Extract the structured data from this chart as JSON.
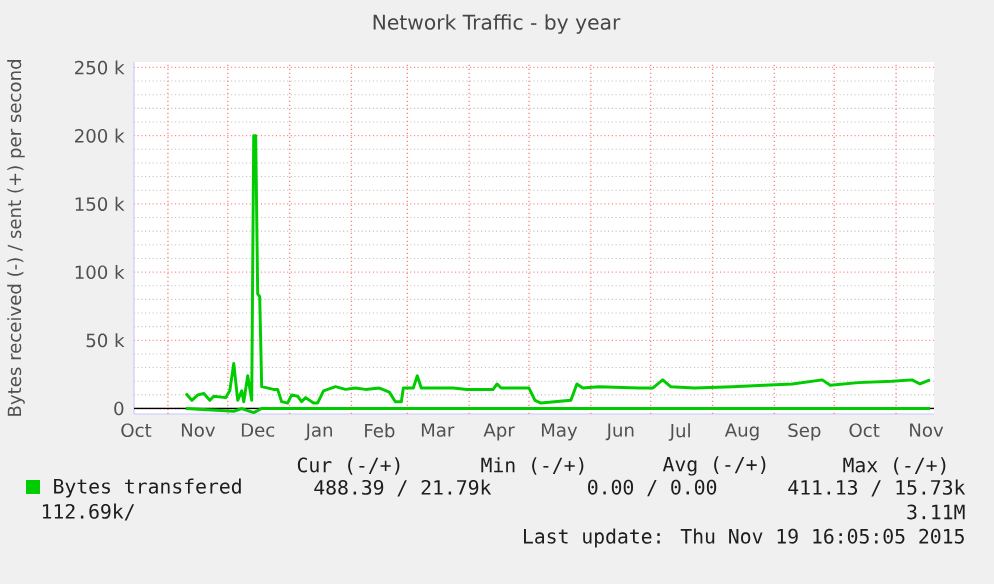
{
  "chart_data": {
    "type": "line",
    "title": "Network Traffic - by year",
    "ylabel": "Bytes received (-) / sent (+) per second",
    "xlim": [
      "2014-10-15",
      "2015-11-20"
    ],
    "xticks": [
      {
        "value": "2014-10-16",
        "label": "Oct"
      },
      {
        "value": "2014-11-01",
        "label": null
      },
      {
        "value": "2014-11-16",
        "label": "Nov"
      },
      {
        "value": "2014-12-01",
        "label": null
      },
      {
        "value": "2014-12-16",
        "label": "Dec"
      },
      {
        "value": "2015-01-01",
        "label": null
      },
      {
        "value": "2015-01-16",
        "label": "Jan"
      },
      {
        "value": "2015-02-01",
        "label": null
      },
      {
        "value": "2015-02-15",
        "label": "Feb"
      },
      {
        "value": "2015-03-01",
        "label": null
      },
      {
        "value": "2015-03-16",
        "label": "Mar"
      },
      {
        "value": "2015-04-01",
        "label": null
      },
      {
        "value": "2015-04-16",
        "label": "Apr"
      },
      {
        "value": "2015-05-01",
        "label": null
      },
      {
        "value": "2015-05-16",
        "label": "May"
      },
      {
        "value": "2015-06-01",
        "label": null
      },
      {
        "value": "2015-06-16",
        "label": "Jun"
      },
      {
        "value": "2015-07-01",
        "label": null
      },
      {
        "value": "2015-07-16",
        "label": "Jul"
      },
      {
        "value": "2015-08-01",
        "label": null
      },
      {
        "value": "2015-08-16",
        "label": "Aug"
      },
      {
        "value": "2015-09-01",
        "label": null
      },
      {
        "value": "2015-09-16",
        "label": "Sep"
      },
      {
        "value": "2015-10-01",
        "label": null
      },
      {
        "value": "2015-10-16",
        "label": "Oct"
      },
      {
        "value": "2015-11-01",
        "label": null
      },
      {
        "value": "2015-11-16",
        "label": "Nov"
      }
    ],
    "ylim": [
      -4000,
      254000
    ],
    "yticks": [
      {
        "value": 0,
        "label": "0"
      },
      {
        "value": 50000,
        "label": "50 k"
      },
      {
        "value": 100000,
        "label": "100 k"
      },
      {
        "value": 150000,
        "label": "150 k"
      },
      {
        "value": 200000,
        "label": "200 k"
      },
      {
        "value": 250000,
        "label": "250 k"
      }
    ],
    "grid": true,
    "legend": "bottom",
    "ref_lines": [
      {
        "axis": "y",
        "value": 0,
        "color": "#000000"
      }
    ],
    "series": [
      {
        "name": "Bytes transfered",
        "color": "#00cc00",
        "x": [
          "2014-11-10",
          "2014-11-13",
          "2014-11-16",
          "2014-11-19",
          "2014-11-22",
          "2014-11-24",
          "2014-11-30",
          "2014-12-02",
          "2014-12-04",
          "2014-12-06",
          "2014-12-08",
          "2014-12-09",
          "2014-12-11",
          "2014-12-13",
          "2014-12-14",
          "2014-12-15",
          "2014-12-16",
          "2014-12-17",
          "2014-12-18",
          "2014-12-24",
          "2014-12-26",
          "2014-12-28",
          "2014-12-31",
          "2015-01-02",
          "2015-01-05",
          "2015-01-07",
          "2015-01-09",
          "2015-01-13",
          "2015-01-15",
          "2015-01-18",
          "2015-01-24",
          "2015-01-29",
          "2015-02-03",
          "2015-02-08",
          "2015-02-15",
          "2015-02-20",
          "2015-02-23",
          "2015-02-26",
          "2015-02-27",
          "2015-03-04",
          "2015-03-06",
          "2015-03-08",
          "2015-03-24",
          "2015-03-31",
          "2015-04-13",
          "2015-04-15",
          "2015-04-17",
          "2015-05-01",
          "2015-05-04",
          "2015-05-07",
          "2015-05-22",
          "2015-05-25",
          "2015-05-28",
          "2015-06-05",
          "2015-06-25",
          "2015-07-02",
          "2015-07-07",
          "2015-07-11",
          "2015-07-23",
          "2015-08-11",
          "2015-08-27",
          "2015-09-10",
          "2015-09-25",
          "2015-09-29",
          "2015-10-13",
          "2015-10-30",
          "2015-11-09",
          "2015-11-13",
          "2015-11-18"
        ],
        "values": [
          11000,
          6000,
          10000,
          11000,
          6000,
          9000,
          8000,
          13000,
          33000,
          6000,
          13000,
          5000,
          24000,
          6000,
          200000,
          200000,
          84000,
          82000,
          16000,
          14000,
          14000,
          5000,
          4000,
          10000,
          9000,
          5000,
          8000,
          4000,
          4000,
          13000,
          16000,
          14000,
          15000,
          14000,
          15000,
          12000,
          5000,
          5000,
          15000,
          15000,
          24000,
          15000,
          15000,
          14000,
          14000,
          18000,
          15000,
          15000,
          6000,
          4000,
          6000,
          18000,
          15000,
          16000,
          15000,
          15000,
          21000,
          16000,
          15000,
          16000,
          17000,
          18000,
          21000,
          17000,
          19000,
          20000,
          21000,
          18000,
          21000
        ]
      },
      {
        "color": "#00cc00",
        "x": [
          "2014-11-10",
          "2014-12-04",
          "2014-12-08",
          "2014-12-14",
          "2014-12-18",
          "2015-11-18"
        ],
        "values": [
          0,
          -2000,
          0,
          -3000,
          0,
          0
        ]
      }
    ],
    "annotations": [
      "Cur (-/+)",
      "Min (-/+)",
      "Avg (-/+)",
      "Max (-/+)",
      "488.39 / 21.79k",
      "0.00 / 0.00",
      "411.13 / 15.73k",
      "112.69k/",
      "3.11M",
      "Last update: Thu Nov 19 16:05:05 2015"
    ]
  }
}
